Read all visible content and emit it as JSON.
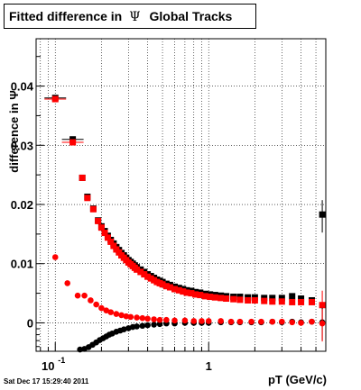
{
  "title": {
    "text": "Fitted difference in",
    "symbol": "Ψ",
    "suffix": "Global Tracks"
  },
  "timestamp": "Sat Dec 17 15:29:40 2011",
  "chart_data": {
    "type": "scatter",
    "title": "Fitted difference in Ψ Global Tracks",
    "xlabel": "pT (GeV/c)",
    "ylabel": "difference in Ψ",
    "xscale": "log",
    "xlim": [
      0.075,
      5.8
    ],
    "ylim": [
      -0.0048,
      0.048
    ],
    "grid": true,
    "x_ticks": [
      {
        "value": 0.1,
        "base": "10",
        "exp": "-1"
      },
      {
        "value": 1,
        "label": "1"
      }
    ],
    "y_ticks": [
      {
        "value": 0,
        "label": "0"
      },
      {
        "value": 0.01,
        "label": "0.01"
      },
      {
        "value": 0.02,
        "label": "0.02"
      },
      {
        "value": 0.03,
        "label": "0.03"
      },
      {
        "value": 0.04,
        "label": "0.04"
      }
    ],
    "series": [
      {
        "marker": "square",
        "color": "#000000",
        "points": [
          [
            0.1,
            0.038
          ],
          [
            0.13,
            0.031
          ],
          [
            0.15,
            0.0245
          ],
          [
            0.162,
            0.0213
          ],
          [
            0.177,
            0.0193
          ],
          [
            0.19,
            0.0173
          ],
          [
            0.2,
            0.0163
          ],
          [
            0.21,
            0.0155
          ],
          [
            0.22,
            0.0147
          ],
          [
            0.23,
            0.014
          ],
          [
            0.24,
            0.0134
          ],
          [
            0.25,
            0.0128
          ],
          [
            0.26,
            0.0123
          ],
          [
            0.27,
            0.0118
          ],
          [
            0.28,
            0.0114
          ],
          [
            0.29,
            0.011
          ],
          [
            0.3,
            0.0106
          ],
          [
            0.31,
            0.0103
          ],
          [
            0.32,
            0.01
          ],
          [
            0.33,
            0.0097
          ],
          [
            0.34,
            0.0094
          ],
          [
            0.36,
            0.009
          ],
          [
            0.38,
            0.0086
          ],
          [
            0.4,
            0.0082
          ],
          [
            0.42,
            0.0079
          ],
          [
            0.44,
            0.0076
          ],
          [
            0.46,
            0.0073
          ],
          [
            0.48,
            0.0071
          ],
          [
            0.5,
            0.0069
          ],
          [
            0.53,
            0.0066
          ],
          [
            0.56,
            0.0064
          ],
          [
            0.6,
            0.0061
          ],
          [
            0.64,
            0.0059
          ],
          [
            0.68,
            0.0057
          ],
          [
            0.72,
            0.0055
          ],
          [
            0.77,
            0.0054
          ],
          [
            0.82,
            0.0052
          ],
          [
            0.88,
            0.0051
          ],
          [
            0.95,
            0.0049
          ],
          [
            1.02,
            0.0048
          ],
          [
            1.1,
            0.0047
          ],
          [
            1.2,
            0.0046
          ],
          [
            1.3,
            0.0045
          ],
          [
            1.45,
            0.0044
          ],
          [
            1.6,
            0.0044
          ],
          [
            1.8,
            0.0043
          ],
          [
            2.0,
            0.0043
          ],
          [
            2.3,
            0.0042
          ],
          [
            2.6,
            0.0042
          ],
          [
            3.0,
            0.0042
          ],
          [
            3.5,
            0.0045
          ],
          [
            4.0,
            0.0041
          ],
          [
            4.7,
            0.0038
          ],
          [
            5.5,
            0.0183
          ]
        ]
      },
      {
        "marker": "square",
        "color": "#ff0000",
        "points": [
          [
            0.1,
            0.0378
          ],
          [
            0.13,
            0.0305
          ],
          [
            0.15,
            0.0245
          ],
          [
            0.162,
            0.0211
          ],
          [
            0.177,
            0.0192
          ],
          [
            0.19,
            0.0172
          ],
          [
            0.2,
            0.0161
          ],
          [
            0.21,
            0.0152
          ],
          [
            0.22,
            0.0144
          ],
          [
            0.23,
            0.0137
          ],
          [
            0.24,
            0.013
          ],
          [
            0.25,
            0.0124
          ],
          [
            0.26,
            0.0119
          ],
          [
            0.27,
            0.0114
          ],
          [
            0.28,
            0.011
          ],
          [
            0.29,
            0.0106
          ],
          [
            0.3,
            0.0102
          ],
          [
            0.31,
            0.0099
          ],
          [
            0.32,
            0.0096
          ],
          [
            0.33,
            0.0093
          ],
          [
            0.34,
            0.009
          ],
          [
            0.36,
            0.0086
          ],
          [
            0.38,
            0.0082
          ],
          [
            0.4,
            0.0078
          ],
          [
            0.42,
            0.0075
          ],
          [
            0.44,
            0.0072
          ],
          [
            0.46,
            0.0069
          ],
          [
            0.48,
            0.0067
          ],
          [
            0.5,
            0.0065
          ],
          [
            0.53,
            0.0062
          ],
          [
            0.56,
            0.006
          ],
          [
            0.6,
            0.0057
          ],
          [
            0.64,
            0.0055
          ],
          [
            0.68,
            0.0053
          ],
          [
            0.72,
            0.0051
          ],
          [
            0.77,
            0.005
          ],
          [
            0.82,
            0.0048
          ],
          [
            0.88,
            0.0047
          ],
          [
            0.95,
            0.0045
          ],
          [
            1.02,
            0.0044
          ],
          [
            1.1,
            0.0043
          ],
          [
            1.2,
            0.0042
          ],
          [
            1.3,
            0.0041
          ],
          [
            1.45,
            0.004
          ],
          [
            1.6,
            0.0039
          ],
          [
            1.8,
            0.0038
          ],
          [
            2.0,
            0.0038
          ],
          [
            2.3,
            0.0037
          ],
          [
            2.6,
            0.0036
          ],
          [
            3.0,
            0.0036
          ],
          [
            3.5,
            0.0035
          ],
          [
            4.0,
            0.0035
          ],
          [
            4.7,
            0.0035
          ],
          [
            5.5,
            0.003
          ]
        ]
      },
      {
        "marker": "circle",
        "color": "#000000",
        "points": [
          [
            0.145,
            -0.0045
          ],
          [
            0.155,
            -0.0044
          ],
          [
            0.165,
            -0.0041
          ],
          [
            0.175,
            -0.0037
          ],
          [
            0.185,
            -0.0033
          ],
          [
            0.195,
            -0.0029
          ],
          [
            0.205,
            -0.0026
          ],
          [
            0.215,
            -0.0023
          ],
          [
            0.225,
            -0.002
          ],
          [
            0.235,
            -0.0018
          ],
          [
            0.25,
            -0.0015
          ],
          [
            0.265,
            -0.0013
          ],
          [
            0.28,
            -0.0011
          ],
          [
            0.3,
            -0.0009
          ],
          [
            0.32,
            -0.0007
          ],
          [
            0.34,
            -0.0006
          ],
          [
            0.37,
            -0.0005
          ],
          [
            0.4,
            -0.0004
          ],
          [
            0.44,
            -0.0003
          ],
          [
            0.48,
            -0.0002
          ],
          [
            0.53,
            -0.0001
          ],
          [
            0.6,
            -0.0001
          ],
          [
            0.7,
            0.0
          ],
          [
            0.8,
            0.0
          ],
          [
            0.9,
            0.0
          ],
          [
            1.0,
            0.0
          ],
          [
            1.2,
            0.0001
          ],
          [
            1.4,
            0.0001
          ],
          [
            1.6,
            0.0001
          ],
          [
            1.9,
            0.0001
          ],
          [
            2.2,
            0.0001
          ],
          [
            2.6,
            0.0002
          ],
          [
            3.0,
            0.0001
          ],
          [
            3.5,
            0.0002
          ],
          [
            4.0,
            0.0001
          ],
          [
            4.7,
            0.0002
          ],
          [
            5.5,
            0.0001
          ]
        ]
      },
      {
        "marker": "circle",
        "color": "#ff0000",
        "points": [
          [
            0.1,
            0.0111
          ],
          [
            0.12,
            0.0067
          ],
          [
            0.14,
            0.0046
          ],
          [
            0.155,
            0.0046
          ],
          [
            0.17,
            0.0038
          ],
          [
            0.185,
            0.0031
          ],
          [
            0.2,
            0.0025
          ],
          [
            0.215,
            0.0021
          ],
          [
            0.23,
            0.0018
          ],
          [
            0.25,
            0.0015
          ],
          [
            0.27,
            0.0013
          ],
          [
            0.29,
            0.0011
          ],
          [
            0.31,
            0.001
          ],
          [
            0.34,
            0.0009
          ],
          [
            0.37,
            0.0008
          ],
          [
            0.4,
            0.0007
          ],
          [
            0.44,
            0.0006
          ],
          [
            0.48,
            0.0005
          ],
          [
            0.53,
            0.0005
          ],
          [
            0.6,
            0.0004
          ],
          [
            0.7,
            0.0004
          ],
          [
            0.8,
            0.0003
          ],
          [
            0.9,
            0.0003
          ],
          [
            1.0,
            0.0003
          ],
          [
            1.2,
            0.0003
          ],
          [
            1.4,
            0.0002
          ],
          [
            1.6,
            0.0002
          ],
          [
            1.9,
            0.0002
          ],
          [
            2.2,
            0.0002
          ],
          [
            2.6,
            0.0002
          ],
          [
            3.0,
            0.0002
          ],
          [
            3.5,
            0.0001
          ],
          [
            4.0,
            0.0
          ],
          [
            4.7,
            0.0002
          ],
          [
            5.5,
            -0.0001
          ]
        ]
      }
    ]
  }
}
